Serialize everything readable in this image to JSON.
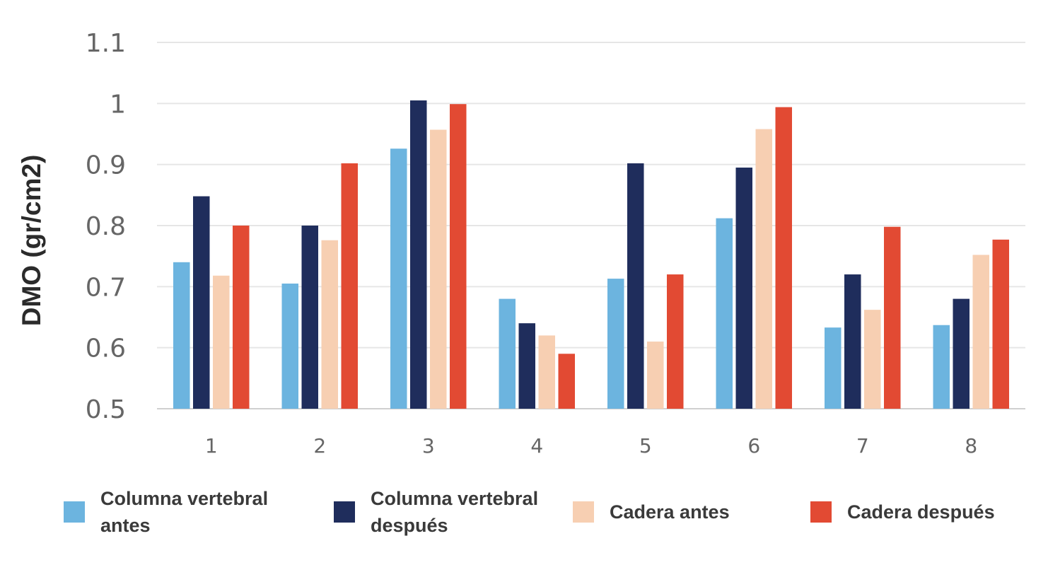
{
  "chart_data": {
    "type": "bar",
    "title": "",
    "xlabel": "",
    "ylabel": "DMO (gr/cm2)",
    "ylim": [
      0.5,
      1.1
    ],
    "yticks": [
      "0.5",
      "0.6",
      "0.7",
      "0.8",
      "0.9",
      "1",
      "1.1"
    ],
    "grid": true,
    "legend_position": "bottom",
    "categories": [
      "1",
      "2",
      "3",
      "4",
      "5",
      "6",
      "7",
      "8"
    ],
    "series": [
      {
        "name": "Columna vertebral antes",
        "color": "#6cb4df",
        "values": [
          0.74,
          0.705,
          0.926,
          0.68,
          0.713,
          0.812,
          0.633,
          0.637
        ]
      },
      {
        "name": "Columna vertebral después",
        "color": "#1f2d5c",
        "values": [
          0.848,
          0.8,
          1.005,
          0.64,
          0.902,
          0.895,
          0.72,
          0.68
        ]
      },
      {
        "name": "Cadera antes",
        "color": "#f7cfb2",
        "values": [
          0.718,
          0.776,
          0.957,
          0.62,
          0.61,
          0.958,
          0.662,
          0.752
        ]
      },
      {
        "name": "Cadera después",
        "color": "#e24a33",
        "values": [
          0.8,
          0.902,
          0.999,
          0.59,
          0.72,
          0.994,
          0.798,
          0.777
        ]
      }
    ]
  }
}
